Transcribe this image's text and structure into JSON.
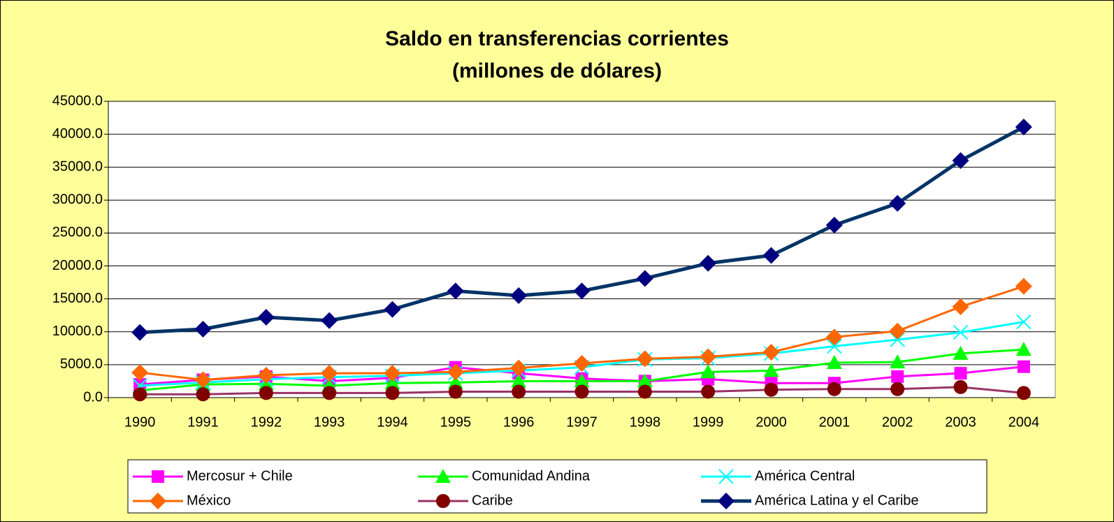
{
  "chart_data": {
    "type": "line",
    "title": [
      "Saldo en transferencias corrientes",
      "(millones de dólares)"
    ],
    "categories": [
      "1990",
      "1991",
      "1992",
      "1993",
      "1994",
      "1995",
      "1996",
      "1997",
      "1998",
      "1999",
      "2000",
      "2001",
      "2002",
      "2003",
      "2004"
    ],
    "ylim": [
      0,
      45000
    ],
    "yticks": [
      {
        "value": 0,
        "label": "0.0"
      },
      {
        "value": 5000,
        "label": "5000.0"
      },
      {
        "value": 10000,
        "label": "10000.0"
      },
      {
        "value": 15000,
        "label": "15000.0"
      },
      {
        "value": 20000,
        "label": "20000.0"
      },
      {
        "value": 25000,
        "label": "25000.0"
      },
      {
        "value": 30000,
        "label": "30000.0"
      },
      {
        "value": 35000,
        "label": "35000.0"
      },
      {
        "value": 40000,
        "label": "40000.0"
      },
      {
        "value": 45000,
        "label": "45000.0"
      }
    ],
    "grid": true,
    "legend": "bottom",
    "series": [
      {
        "name": "Mercosur + Chile",
        "color": "#FF00FF",
        "marker": "square",
        "values": [
          2000,
          2700,
          3200,
          2500,
          3000,
          4600,
          3700,
          2900,
          2500,
          2800,
          2200,
          2200,
          3200,
          3700,
          4700
        ]
      },
      {
        "name": "Comunidad Andina",
        "color": "#00FF00",
        "marker": "triangle",
        "values": [
          1100,
          2000,
          2100,
          1800,
          2200,
          2300,
          2500,
          2500,
          2500,
          3900,
          4100,
          5300,
          5400,
          6700,
          7300
        ]
      },
      {
        "name": "América Central",
        "color": "#00FFFF",
        "marker": "x",
        "values": [
          1800,
          2300,
          2800,
          3100,
          3300,
          3700,
          4100,
          4600,
          5800,
          6000,
          6700,
          7800,
          8800,
          9900,
          11500
        ]
      },
      {
        "name": "México",
        "color": "#FF6600",
        "marker": "diamond",
        "values": [
          3800,
          2700,
          3400,
          3700,
          3700,
          3900,
          4500,
          5200,
          5900,
          6200,
          6900,
          9200,
          10100,
          13800,
          16900
        ]
      },
      {
        "name": "Caribe",
        "color": "#993366",
        "marker": "circle",
        "marker_color": "#800000",
        "values": [
          500,
          500,
          700,
          700,
          700,
          900,
          900,
          900,
          900,
          900,
          1200,
          1300,
          1300,
          1600,
          700
        ]
      },
      {
        "name": "América Latina y el Caribe",
        "color": "#003366",
        "marker": "diamond",
        "marker_color": "#000080",
        "values": [
          9900,
          10400,
          12200,
          11700,
          13400,
          16200,
          15500,
          16200,
          18100,
          20400,
          21600,
          26200,
          29500,
          36000,
          41100
        ]
      }
    ]
  }
}
